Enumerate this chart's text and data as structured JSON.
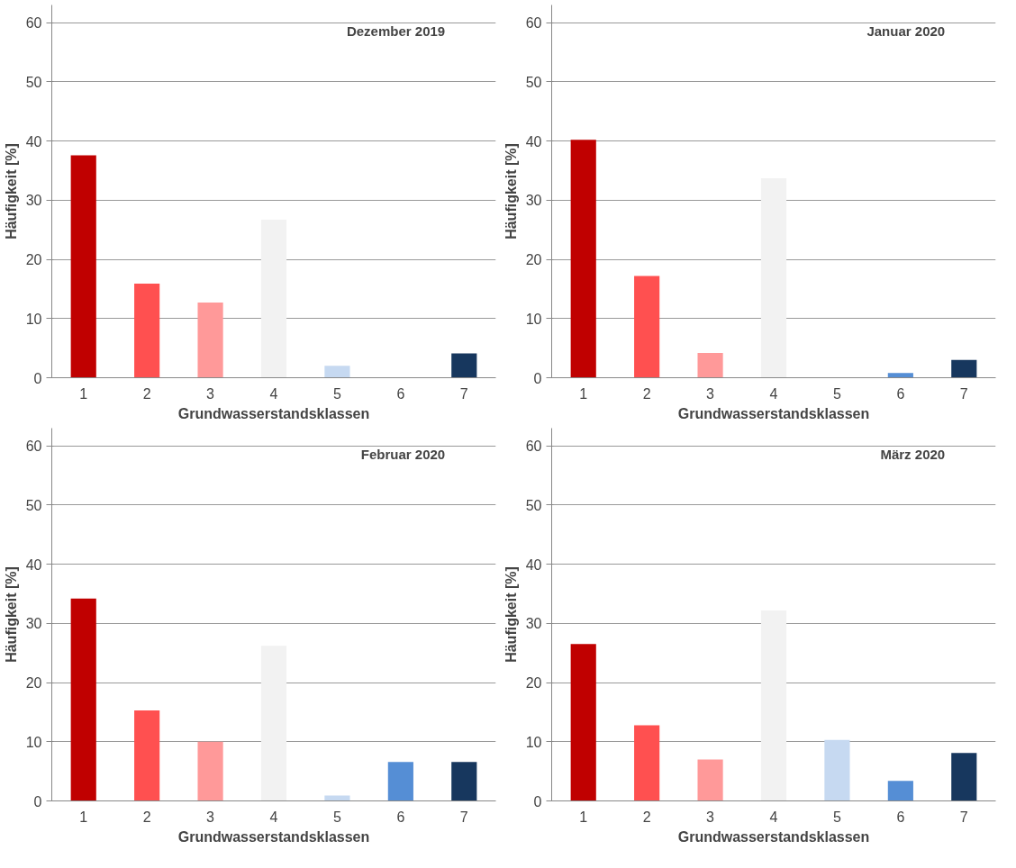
{
  "chart_data": [
    {
      "type": "bar",
      "title": "Dezember 2019",
      "xlabel": "Grundwasserstandsklassen",
      "ylabel": "Häufigkeit [%]",
      "categories": [
        "1",
        "2",
        "3",
        "4",
        "5",
        "6",
        "7"
      ],
      "values": [
        37.6,
        15.9,
        12.7,
        26.7,
        2.0,
        0,
        4.1
      ],
      "colors": [
        "#c00000",
        "#ff5050",
        "#ff9999",
        "#f2f2f2",
        "#c6d9f1",
        "#558ed5",
        "#17375e"
      ],
      "ylim": [
        0,
        63
      ],
      "yticks": [
        0,
        10,
        20,
        30,
        40,
        50,
        60
      ],
      "grid": "y"
    },
    {
      "type": "bar",
      "title": "Januar 2020",
      "xlabel": "Grundwasserstandsklassen",
      "ylabel": "Häufigkeit [%]",
      "categories": [
        "1",
        "2",
        "3",
        "4",
        "5",
        "6",
        "7"
      ],
      "values": [
        40.2,
        17.2,
        4.2,
        33.7,
        0,
        0.8,
        3.0
      ],
      "colors": [
        "#c00000",
        "#ff5050",
        "#ff9999",
        "#f2f2f2",
        "#c6d9f1",
        "#558ed5",
        "#17375e"
      ],
      "ylim": [
        0,
        63
      ],
      "yticks": [
        0,
        10,
        20,
        30,
        40,
        50,
        60
      ],
      "grid": "y"
    },
    {
      "type": "bar",
      "title": "Februar 2020",
      "xlabel": "Grundwasserstandsklassen",
      "ylabel": "Häufigkeit [%]",
      "categories": [
        "1",
        "2",
        "3",
        "4",
        "5",
        "6",
        "7"
      ],
      "values": [
        34.2,
        15.3,
        10.0,
        26.2,
        0.9,
        6.6,
        6.6
      ],
      "colors": [
        "#c00000",
        "#ff5050",
        "#ff9999",
        "#f2f2f2",
        "#c6d9f1",
        "#558ed5",
        "#17375e"
      ],
      "ylim": [
        0,
        63
      ],
      "yticks": [
        0,
        10,
        20,
        30,
        40,
        50,
        60
      ],
      "grid": "y"
    },
    {
      "type": "bar",
      "title": "März 2020",
      "xlabel": "Grundwasserstandsklassen",
      "ylabel": "Häufigkeit [%]",
      "categories": [
        "1",
        "2",
        "3",
        "4",
        "5",
        "6",
        "7"
      ],
      "values": [
        26.5,
        12.8,
        7.0,
        32.2,
        10.3,
        3.4,
        8.1
      ],
      "colors": [
        "#c00000",
        "#ff5050",
        "#ff9999",
        "#f2f2f2",
        "#c6d9f1",
        "#558ed5",
        "#17375e"
      ],
      "ylim": [
        0,
        63
      ],
      "yticks": [
        0,
        10,
        20,
        30,
        40,
        50,
        60
      ],
      "grid": "y"
    }
  ]
}
